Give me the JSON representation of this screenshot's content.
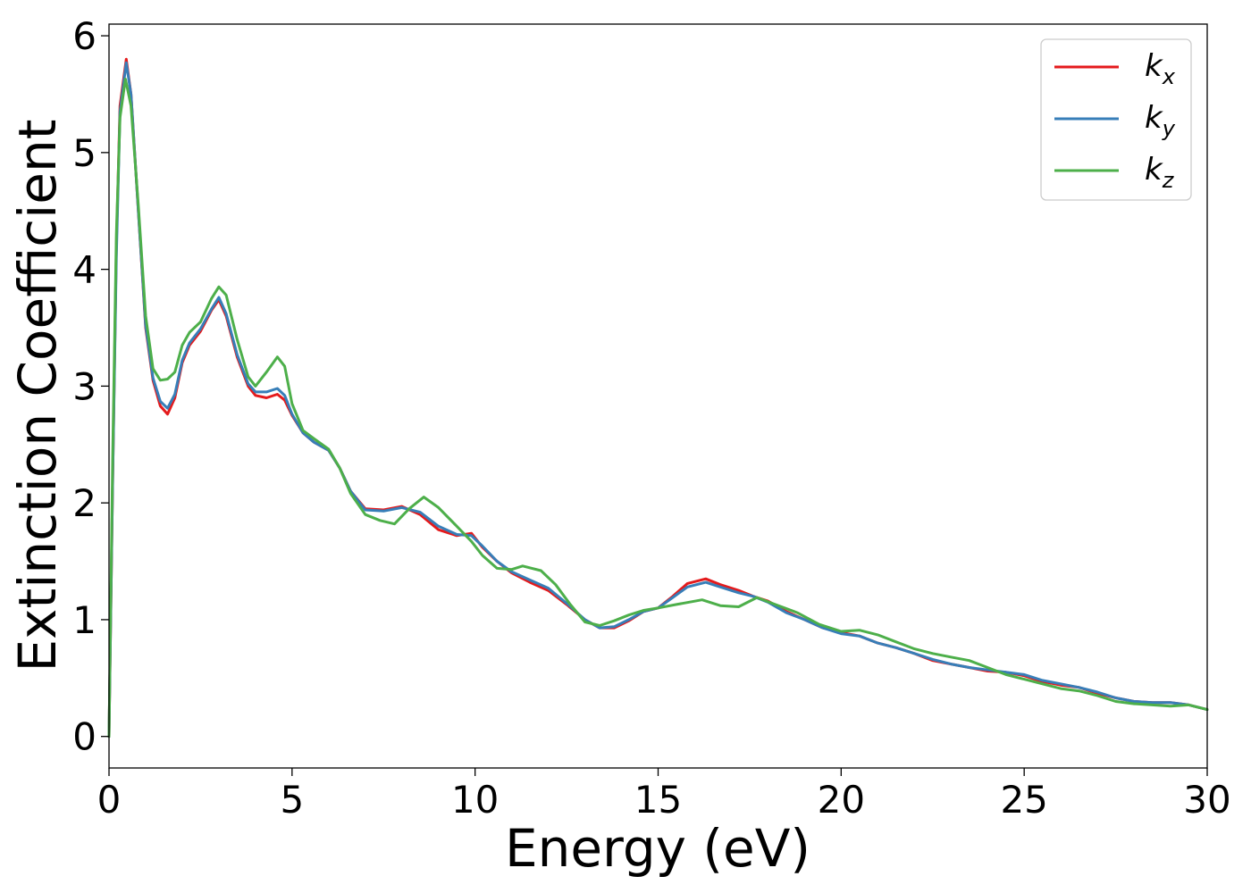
{
  "chart_data": {
    "type": "line",
    "title": "",
    "xlabel": "Energy (eV)",
    "ylabel": "Extinction Coefficient",
    "xlim": [
      0,
      30
    ],
    "ylim": [
      -0.27,
      6.1
    ],
    "xticks": [
      0,
      5,
      10,
      15,
      20,
      25,
      30
    ],
    "yticks": [
      0,
      1,
      2,
      3,
      4,
      5,
      6
    ],
    "xtick_labels": [
      "0",
      "5",
      "10",
      "15",
      "20",
      "25",
      "30"
    ],
    "ytick_labels": [
      "0",
      "1",
      "2",
      "3",
      "4",
      "5",
      "6"
    ],
    "grid": false,
    "legend_position": "top-right",
    "series": [
      {
        "name": "kx",
        "label_main": "k",
        "label_sub": "x",
        "color": "#e41a1c",
        "points": [
          [
            0,
            0.0
          ],
          [
            0.1,
            2.2
          ],
          [
            0.2,
            4.2
          ],
          [
            0.3,
            5.4
          ],
          [
            0.47,
            5.8
          ],
          [
            0.6,
            5.5
          ],
          [
            0.8,
            4.5
          ],
          [
            1.0,
            3.5
          ],
          [
            1.2,
            3.05
          ],
          [
            1.4,
            2.83
          ],
          [
            1.6,
            2.76
          ],
          [
            1.8,
            2.9
          ],
          [
            2.0,
            3.2
          ],
          [
            2.2,
            3.35
          ],
          [
            2.5,
            3.47
          ],
          [
            2.8,
            3.65
          ],
          [
            3.0,
            3.74
          ],
          [
            3.2,
            3.6
          ],
          [
            3.5,
            3.25
          ],
          [
            3.8,
            3.0
          ],
          [
            4.0,
            2.92
          ],
          [
            4.3,
            2.9
          ],
          [
            4.6,
            2.93
          ],
          [
            4.8,
            2.88
          ],
          [
            5.0,
            2.75
          ],
          [
            5.3,
            2.6
          ],
          [
            5.6,
            2.52
          ],
          [
            6.0,
            2.45
          ],
          [
            6.3,
            2.3
          ],
          [
            6.6,
            2.1
          ],
          [
            7.0,
            1.95
          ],
          [
            7.5,
            1.94
          ],
          [
            8.0,
            1.97
          ],
          [
            8.5,
            1.9
          ],
          [
            9.0,
            1.77
          ],
          [
            9.5,
            1.72
          ],
          [
            9.9,
            1.74
          ],
          [
            10.2,
            1.62
          ],
          [
            10.6,
            1.5
          ],
          [
            11.0,
            1.4
          ],
          [
            11.5,
            1.32
          ],
          [
            12.0,
            1.25
          ],
          [
            12.5,
            1.13
          ],
          [
            13.0,
            1.0
          ],
          [
            13.4,
            0.93
          ],
          [
            13.8,
            0.93
          ],
          [
            14.2,
            0.99
          ],
          [
            14.6,
            1.07
          ],
          [
            15.0,
            1.1
          ],
          [
            15.4,
            1.2
          ],
          [
            15.8,
            1.31
          ],
          [
            16.3,
            1.35
          ],
          [
            16.7,
            1.3
          ],
          [
            17.2,
            1.25
          ],
          [
            17.6,
            1.2
          ],
          [
            18.0,
            1.16
          ],
          [
            18.5,
            1.07
          ],
          [
            19.0,
            1.0
          ],
          [
            19.5,
            0.93
          ],
          [
            20.0,
            0.89
          ],
          [
            20.5,
            0.86
          ],
          [
            21.0,
            0.8
          ],
          [
            21.5,
            0.76
          ],
          [
            22.0,
            0.71
          ],
          [
            22.5,
            0.65
          ],
          [
            23.0,
            0.62
          ],
          [
            23.5,
            0.59
          ],
          [
            24.0,
            0.56
          ],
          [
            24.5,
            0.55
          ],
          [
            25.0,
            0.52
          ],
          [
            25.5,
            0.47
          ],
          [
            26.0,
            0.44
          ],
          [
            26.5,
            0.42
          ],
          [
            27.0,
            0.37
          ],
          [
            27.5,
            0.33
          ],
          [
            28.0,
            0.3
          ],
          [
            28.5,
            0.29
          ],
          [
            29.0,
            0.29
          ],
          [
            29.5,
            0.27
          ],
          [
            30.0,
            0.23
          ]
        ]
      },
      {
        "name": "ky",
        "label_main": "k",
        "label_sub": "y",
        "color": "#377eb8",
        "points": [
          [
            0,
            0.0
          ],
          [
            0.1,
            2.2
          ],
          [
            0.2,
            4.1
          ],
          [
            0.3,
            5.35
          ],
          [
            0.47,
            5.77
          ],
          [
            0.6,
            5.5
          ],
          [
            0.8,
            4.5
          ],
          [
            1.0,
            3.52
          ],
          [
            1.2,
            3.07
          ],
          [
            1.4,
            2.87
          ],
          [
            1.6,
            2.81
          ],
          [
            1.8,
            2.93
          ],
          [
            2.0,
            3.22
          ],
          [
            2.2,
            3.37
          ],
          [
            2.5,
            3.49
          ],
          [
            2.8,
            3.66
          ],
          [
            3.0,
            3.76
          ],
          [
            3.2,
            3.62
          ],
          [
            3.5,
            3.27
          ],
          [
            3.8,
            3.02
          ],
          [
            4.0,
            2.95
          ],
          [
            4.3,
            2.95
          ],
          [
            4.6,
            2.98
          ],
          [
            4.8,
            2.92
          ],
          [
            5.0,
            2.76
          ],
          [
            5.3,
            2.6
          ],
          [
            5.6,
            2.52
          ],
          [
            6.0,
            2.45
          ],
          [
            6.3,
            2.3
          ],
          [
            6.6,
            2.1
          ],
          [
            7.0,
            1.94
          ],
          [
            7.5,
            1.93
          ],
          [
            8.0,
            1.96
          ],
          [
            8.5,
            1.92
          ],
          [
            9.0,
            1.8
          ],
          [
            9.5,
            1.73
          ],
          [
            9.9,
            1.72
          ],
          [
            10.2,
            1.63
          ],
          [
            10.6,
            1.5
          ],
          [
            11.0,
            1.41
          ],
          [
            11.5,
            1.34
          ],
          [
            12.0,
            1.27
          ],
          [
            12.5,
            1.14
          ],
          [
            13.0,
            1.0
          ],
          [
            13.4,
            0.93
          ],
          [
            13.8,
            0.94
          ],
          [
            14.2,
            1.0
          ],
          [
            14.6,
            1.07
          ],
          [
            15.0,
            1.1
          ],
          [
            15.4,
            1.19
          ],
          [
            15.8,
            1.28
          ],
          [
            16.3,
            1.32
          ],
          [
            16.7,
            1.28
          ],
          [
            17.2,
            1.23
          ],
          [
            17.6,
            1.2
          ],
          [
            18.0,
            1.15
          ],
          [
            18.5,
            1.06
          ],
          [
            19.0,
            1.0
          ],
          [
            19.5,
            0.93
          ],
          [
            20.0,
            0.88
          ],
          [
            20.5,
            0.86
          ],
          [
            21.0,
            0.8
          ],
          [
            21.5,
            0.76
          ],
          [
            22.0,
            0.71
          ],
          [
            22.5,
            0.66
          ],
          [
            23.0,
            0.62
          ],
          [
            23.5,
            0.59
          ],
          [
            24.0,
            0.57
          ],
          [
            24.5,
            0.55
          ],
          [
            25.0,
            0.53
          ],
          [
            25.5,
            0.48
          ],
          [
            26.0,
            0.45
          ],
          [
            26.5,
            0.42
          ],
          [
            27.0,
            0.38
          ],
          [
            27.5,
            0.33
          ],
          [
            28.0,
            0.3
          ],
          [
            28.5,
            0.29
          ],
          [
            29.0,
            0.29
          ],
          [
            29.5,
            0.27
          ],
          [
            30.0,
            0.23
          ]
        ]
      },
      {
        "name": "kz",
        "label_main": "k",
        "label_sub": "z",
        "color": "#4daf4a",
        "points": [
          [
            0,
            0.0
          ],
          [
            0.1,
            2.4
          ],
          [
            0.2,
            4.3
          ],
          [
            0.3,
            5.3
          ],
          [
            0.45,
            5.63
          ],
          [
            0.6,
            5.4
          ],
          [
            0.8,
            4.55
          ],
          [
            1.0,
            3.6
          ],
          [
            1.2,
            3.15
          ],
          [
            1.4,
            3.05
          ],
          [
            1.6,
            3.06
          ],
          [
            1.8,
            3.12
          ],
          [
            2.0,
            3.35
          ],
          [
            2.2,
            3.46
          ],
          [
            2.5,
            3.55
          ],
          [
            2.8,
            3.75
          ],
          [
            3.0,
            3.85
          ],
          [
            3.2,
            3.78
          ],
          [
            3.5,
            3.4
          ],
          [
            3.8,
            3.08
          ],
          [
            4.0,
            3.0
          ],
          [
            4.3,
            3.12
          ],
          [
            4.6,
            3.25
          ],
          [
            4.8,
            3.17
          ],
          [
            5.0,
            2.85
          ],
          [
            5.3,
            2.62
          ],
          [
            5.6,
            2.55
          ],
          [
            6.0,
            2.46
          ],
          [
            6.3,
            2.3
          ],
          [
            6.6,
            2.08
          ],
          [
            7.0,
            1.9
          ],
          [
            7.4,
            1.85
          ],
          [
            7.8,
            1.82
          ],
          [
            8.2,
            1.95
          ],
          [
            8.6,
            2.05
          ],
          [
            9.0,
            1.96
          ],
          [
            9.5,
            1.8
          ],
          [
            9.9,
            1.67
          ],
          [
            10.2,
            1.55
          ],
          [
            10.6,
            1.44
          ],
          [
            11.0,
            1.43
          ],
          [
            11.3,
            1.46
          ],
          [
            11.8,
            1.42
          ],
          [
            12.2,
            1.3
          ],
          [
            12.6,
            1.13
          ],
          [
            13.0,
            0.98
          ],
          [
            13.4,
            0.95
          ],
          [
            13.8,
            0.99
          ],
          [
            14.2,
            1.04
          ],
          [
            14.6,
            1.08
          ],
          [
            15.0,
            1.1
          ],
          [
            15.5,
            1.13
          ],
          [
            16.2,
            1.17
          ],
          [
            16.7,
            1.12
          ],
          [
            17.2,
            1.11
          ],
          [
            17.7,
            1.19
          ],
          [
            18.2,
            1.13
          ],
          [
            18.8,
            1.06
          ],
          [
            19.4,
            0.96
          ],
          [
            20.0,
            0.9
          ],
          [
            20.5,
            0.91
          ],
          [
            21.0,
            0.87
          ],
          [
            21.5,
            0.81
          ],
          [
            22.0,
            0.75
          ],
          [
            22.5,
            0.71
          ],
          [
            23.0,
            0.68
          ],
          [
            23.5,
            0.65
          ],
          [
            24.0,
            0.59
          ],
          [
            24.5,
            0.53
          ],
          [
            25.0,
            0.49
          ],
          [
            25.5,
            0.45
          ],
          [
            26.0,
            0.41
          ],
          [
            26.5,
            0.39
          ],
          [
            27.0,
            0.35
          ],
          [
            27.5,
            0.3
          ],
          [
            28.0,
            0.28
          ],
          [
            28.5,
            0.27
          ],
          [
            29.0,
            0.26
          ],
          [
            29.5,
            0.27
          ],
          [
            30.0,
            0.23
          ]
        ]
      }
    ]
  }
}
